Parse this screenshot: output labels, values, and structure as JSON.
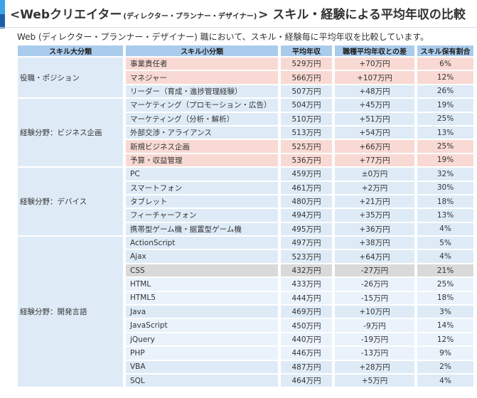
{
  "title": {
    "prefix": "<Webクリエイター",
    "paren": "(ディレクター・プランナー・デザイナー)",
    "suffix": "> スキル・経験による平均年収の比較"
  },
  "subtitle": "Web (ディレクター・プランナー・デザイナー) 職において、スキル・経験毎に平均年収を比較しています。",
  "headers": [
    "スキル大分類",
    "スキル小分類",
    "平均年収",
    "職種平均年収との差",
    "スキル保有割合"
  ],
  "colors": {
    "header": "#a9cbec",
    "row": "#deebf7",
    "highlight": "#f9d9d3",
    "grey": "#d9d9d9"
  },
  "groups": [
    {
      "category": "役職・ポジション",
      "rows": [
        {
          "name": "事業責任者",
          "salary": "529万円",
          "diff": "+70万円",
          "share": "6%",
          "style": "red"
        },
        {
          "name": "マネジャー",
          "salary": "566万円",
          "diff": "+107万円",
          "share": "12%",
          "style": "red"
        },
        {
          "name": "リーダー（育成・進捗管理経験）",
          "salary": "507万円",
          "diff": "+48万円",
          "share": "26%",
          "style": "blue"
        }
      ]
    },
    {
      "category": "経験分野：ビジネス企画",
      "rows": [
        {
          "name": "マーケティング（プロモーション・広告）",
          "salary": "504万円",
          "diff": "+45万円",
          "share": "19%",
          "style": "blue"
        },
        {
          "name": "マーケティング（分析・解析）",
          "salary": "510万円",
          "diff": "+51万円",
          "share": "25%",
          "style": "blue"
        },
        {
          "name": "外部交渉・アライアンス",
          "salary": "513万円",
          "diff": "+54万円",
          "share": "13%",
          "style": "blue"
        },
        {
          "name": "新規ビジネス企画",
          "salary": "525万円",
          "diff": "+66万円",
          "share": "25%",
          "style": "red"
        },
        {
          "name": "予算・収益管理",
          "salary": "536万円",
          "diff": "+77万円",
          "share": "19%",
          "style": "red"
        }
      ]
    },
    {
      "category": "経験分野：デバイス",
      "rows": [
        {
          "name": "PC",
          "salary": "459万円",
          "diff": "±0万円",
          "share": "32%",
          "style": "blue"
        },
        {
          "name": "スマートフォン",
          "salary": "461万円",
          "diff": "+2万円",
          "share": "30%",
          "style": "blue"
        },
        {
          "name": "タブレット",
          "salary": "480万円",
          "diff": "+21万円",
          "share": "18%",
          "style": "blue"
        },
        {
          "name": "フィーチャーフォン",
          "salary": "494万円",
          "diff": "+35万円",
          "share": "13%",
          "style": "blue"
        },
        {
          "name": "携帯型ゲーム機・据置型ゲーム機",
          "salary": "495万円",
          "diff": "+36万円",
          "share": "4%",
          "style": "blue"
        }
      ]
    },
    {
      "category": "経験分野：開発言語",
      "rows": [
        {
          "name": "ActionScript",
          "salary": "497万円",
          "diff": "+38万円",
          "share": "5%",
          "style": "blue"
        },
        {
          "name": "Ajax",
          "salary": "523万円",
          "diff": "+64万円",
          "share": "4%",
          "style": "blue"
        },
        {
          "name": "CSS",
          "salary": "432万円",
          "diff": "-27万円",
          "share": "21%",
          "style": "grey"
        },
        {
          "name": "HTML",
          "salary": "433万円",
          "diff": "-26万円",
          "share": "25%",
          "style": "light"
        },
        {
          "name": "HTML5",
          "salary": "444万円",
          "diff": "-15万円",
          "share": "18%",
          "style": "light"
        },
        {
          "name": "Java",
          "salary": "469万円",
          "diff": "+10万円",
          "share": "3%",
          "style": "blue"
        },
        {
          "name": "JavaScript",
          "salary": "450万円",
          "diff": "-9万円",
          "share": "14%",
          "style": "light"
        },
        {
          "name": "jQuery",
          "salary": "440万円",
          "diff": "-19万円",
          "share": "12%",
          "style": "light"
        },
        {
          "name": "PHP",
          "salary": "446万円",
          "diff": "-13万円",
          "share": "9%",
          "style": "light"
        },
        {
          "name": "VBA",
          "salary": "487万円",
          "diff": "+28万円",
          "share": "2%",
          "style": "blue"
        },
        {
          "name": "SQL",
          "salary": "464万円",
          "diff": "+5万円",
          "share": "4%",
          "style": "blue"
        }
      ]
    }
  ]
}
